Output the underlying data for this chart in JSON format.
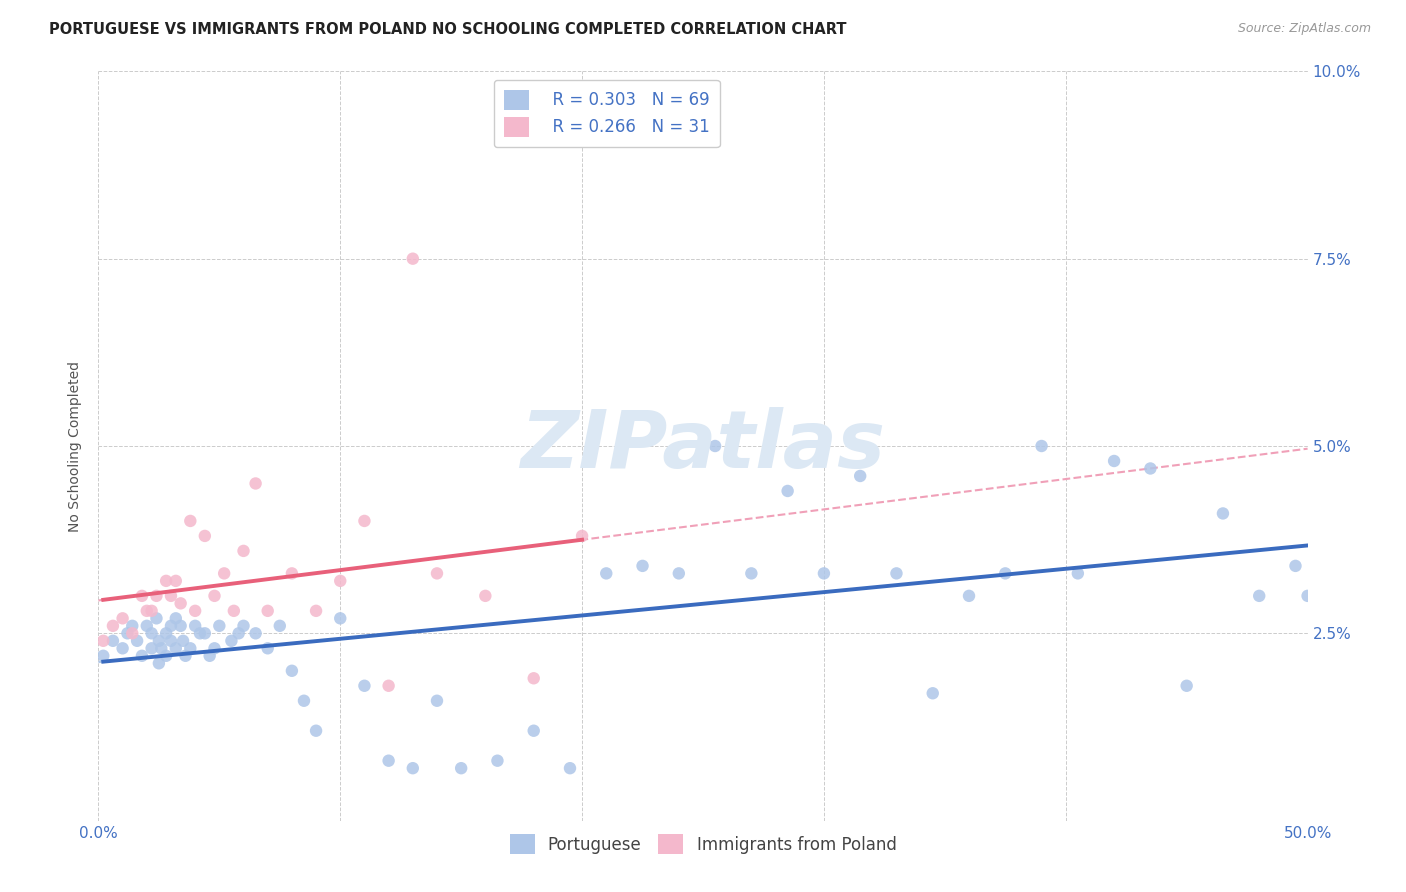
{
  "title": "PORTUGUESE VS IMMIGRANTS FROM POLAND NO SCHOOLING COMPLETED CORRELATION CHART",
  "source": "Source: ZipAtlas.com",
  "ylabel": "No Schooling Completed",
  "xlim": [
    0,
    0.5
  ],
  "ylim": [
    0,
    0.1
  ],
  "xticks": [
    0.0,
    0.1,
    0.2,
    0.3,
    0.4,
    0.5
  ],
  "xticklabels": [
    "0.0%",
    "",
    "",
    "",
    "",
    "50.0%"
  ],
  "yticks": [
    0.0,
    0.025,
    0.05,
    0.075,
    0.1
  ],
  "yticklabels_right": [
    "",
    "2.5%",
    "5.0%",
    "7.5%",
    "10.0%"
  ],
  "legend_r1": "R = 0.303",
  "legend_n1": "N = 69",
  "legend_r2": "R = 0.266",
  "legend_n2": "N = 31",
  "color_blue": "#aec6e8",
  "color_pink": "#f4b8cc",
  "line_blue": "#3a6bbf",
  "line_pink": "#e8607a",
  "line_dash_blue": "#b0c8e8",
  "line_dash_pink": "#f0a0b8",
  "watermark_color": "#dce8f4",
  "blue_x": [
    0.002,
    0.006,
    0.01,
    0.012,
    0.014,
    0.016,
    0.018,
    0.02,
    0.022,
    0.022,
    0.024,
    0.025,
    0.025,
    0.026,
    0.028,
    0.028,
    0.03,
    0.03,
    0.032,
    0.032,
    0.034,
    0.035,
    0.036,
    0.038,
    0.04,
    0.042,
    0.044,
    0.046,
    0.048,
    0.05,
    0.055,
    0.058,
    0.06,
    0.065,
    0.07,
    0.075,
    0.08,
    0.085,
    0.09,
    0.1,
    0.11,
    0.12,
    0.13,
    0.14,
    0.15,
    0.165,
    0.18,
    0.195,
    0.21,
    0.225,
    0.24,
    0.255,
    0.27,
    0.285,
    0.3,
    0.315,
    0.33,
    0.345,
    0.36,
    0.375,
    0.39,
    0.405,
    0.42,
    0.435,
    0.45,
    0.465,
    0.48,
    0.495,
    0.5
  ],
  "blue_y": [
    0.022,
    0.024,
    0.023,
    0.025,
    0.026,
    0.024,
    0.022,
    0.026,
    0.025,
    0.023,
    0.027,
    0.024,
    0.021,
    0.023,
    0.025,
    0.022,
    0.026,
    0.024,
    0.027,
    0.023,
    0.026,
    0.024,
    0.022,
    0.023,
    0.026,
    0.025,
    0.025,
    0.022,
    0.023,
    0.026,
    0.024,
    0.025,
    0.026,
    0.025,
    0.023,
    0.026,
    0.02,
    0.016,
    0.012,
    0.027,
    0.018,
    0.008,
    0.007,
    0.016,
    0.007,
    0.008,
    0.012,
    0.007,
    0.033,
    0.034,
    0.033,
    0.05,
    0.033,
    0.044,
    0.033,
    0.046,
    0.033,
    0.017,
    0.03,
    0.033,
    0.05,
    0.033,
    0.048,
    0.047,
    0.018,
    0.041,
    0.03,
    0.034,
    0.03
  ],
  "pink_x": [
    0.002,
    0.006,
    0.01,
    0.014,
    0.018,
    0.02,
    0.022,
    0.024,
    0.028,
    0.03,
    0.032,
    0.034,
    0.038,
    0.04,
    0.044,
    0.048,
    0.052,
    0.056,
    0.06,
    0.065,
    0.07,
    0.08,
    0.09,
    0.1,
    0.11,
    0.12,
    0.13,
    0.14,
    0.16,
    0.18,
    0.2
  ],
  "pink_y": [
    0.024,
    0.026,
    0.027,
    0.025,
    0.03,
    0.028,
    0.028,
    0.03,
    0.032,
    0.03,
    0.032,
    0.029,
    0.04,
    0.028,
    0.038,
    0.03,
    0.033,
    0.028,
    0.036,
    0.045,
    0.028,
    0.033,
    0.028,
    0.032,
    0.04,
    0.018,
    0.075,
    0.033,
    0.03,
    0.019,
    0.038
  ],
  "title_fontsize": 10.5,
  "axis_label_fontsize": 10,
  "tick_fontsize": 11,
  "legend_fontsize": 12,
  "source_fontsize": 9
}
